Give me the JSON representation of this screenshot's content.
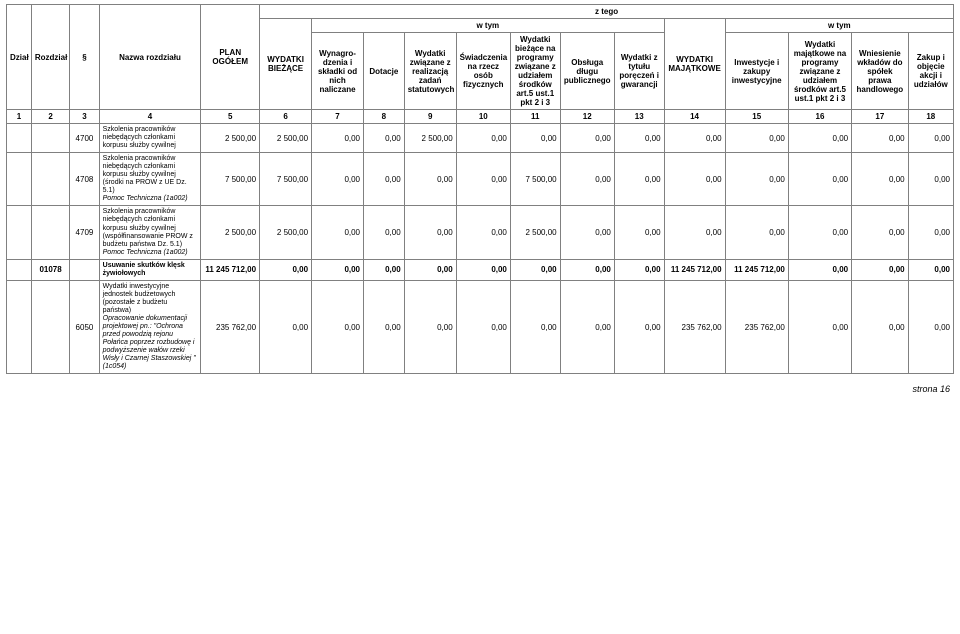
{
  "header": {
    "ztego": "z tego",
    "wtym": "w tym",
    "cols": {
      "c1": "Dział",
      "c2": "Rozdział",
      "c3": "§",
      "c4": "Nazwa rozdziału",
      "c5": "PLAN OGÓŁEM",
      "c6": "WYDATKI BIEŻĄCE",
      "c7": "Wynagro-\ndzenia i składki od nich naliczane",
      "c8": "Dotacje",
      "c9": "Wydatki związane z realizacją zadań statutowych",
      "c10": "Świadczenia na rzecz osób fizycznych",
      "c11": "Wydatki bieżące na programy związane z udziałem środków art.5 ust.1 pkt 2 i 3",
      "c12": "Obsługa długu publicznego",
      "c13": "Wydatki z tytułu poręczeń i gwarancji",
      "c14": "WYDATKI MAJĄTKOWE",
      "c15": "Inwestycje i zakupy inwestycyjne",
      "c16": "Wydatki majątkowe na programy związane z udziałem środków art.5 ust.1 pkt 2 i 3",
      "c17": "Wniesienie wkładów do spółek prawa handlowego",
      "c18": "Zakup i objęcie akcji i udziałów"
    },
    "nums": [
      "1",
      "2",
      "3",
      "4",
      "5",
      "6",
      "7",
      "8",
      "9",
      "10",
      "11",
      "12",
      "13",
      "14",
      "15",
      "16",
      "17",
      "18"
    ]
  },
  "rows": [
    {
      "rozdzial": "",
      "par": "4700",
      "desc_plain": "Szkolenia pracowników niebędących członkami korpusu służby cywilnej",
      "desc_italic": "",
      "v": [
        "2 500,00",
        "2 500,00",
        "0,00",
        "0,00",
        "2 500,00",
        "0,00",
        "0,00",
        "0,00",
        "0,00",
        "0,00",
        "0,00",
        "0,00",
        "0,00",
        "0,00"
      ]
    },
    {
      "rozdzial": "",
      "par": "4708",
      "desc_plain": "Szkolenia pracowników niebędących członkami korpusu służby cywilnej (środki na PROW z UE Dz. 5.1)",
      "desc_italic": "Pomoc Techniczna (1a002)",
      "v": [
        "7 500,00",
        "7 500,00",
        "0,00",
        "0,00",
        "0,00",
        "0,00",
        "7 500,00",
        "0,00",
        "0,00",
        "0,00",
        "0,00",
        "0,00",
        "0,00",
        "0,00"
      ]
    },
    {
      "rozdzial": "",
      "par": "4709",
      "desc_plain": "Szkolenia pracowników niebędących członkami korpusu służby cywilnej (współfinansowanie PROW z budżetu państwa Dz. 5.1)",
      "desc_italic": "Pomoc Techniczna (1a002)",
      "v": [
        "2 500,00",
        "2 500,00",
        "0,00",
        "0,00",
        "0,00",
        "0,00",
        "2 500,00",
        "0,00",
        "0,00",
        "0,00",
        "0,00",
        "0,00",
        "0,00",
        "0,00"
      ]
    },
    {
      "rozdzial": "01078",
      "par": "",
      "desc_plain": "Usuwanie skutków klęsk żywiołowych",
      "desc_italic": "",
      "bold": true,
      "v": [
        "11 245 712,00",
        "0,00",
        "0,00",
        "0,00",
        "0,00",
        "0,00",
        "0,00",
        "0,00",
        "0,00",
        "11 245 712,00",
        "11 245 712,00",
        "0,00",
        "0,00",
        "0,00"
      ]
    },
    {
      "rozdzial": "",
      "par": "6050",
      "desc_plain": "Wydatki inwestycyjne jednostek budżetowych (pozostałe z budżetu państwa)",
      "desc_italic": "Opracowanie dokumentacji projektowej pn.: \"Ochrona przed powodzią rejonu Połańca poprzez rozbudowę i podwyższenie wałów rzeki Wisły i Czarnej Staszowskiej \"(1c054)",
      "v": [
        "235 762,00",
        "0,00",
        "0,00",
        "0,00",
        "0,00",
        "0,00",
        "0,00",
        "0,00",
        "0,00",
        "235 762,00",
        "235 762,00",
        "0,00",
        "0,00",
        "0,00"
      ]
    }
  ],
  "footer": "strona 16"
}
